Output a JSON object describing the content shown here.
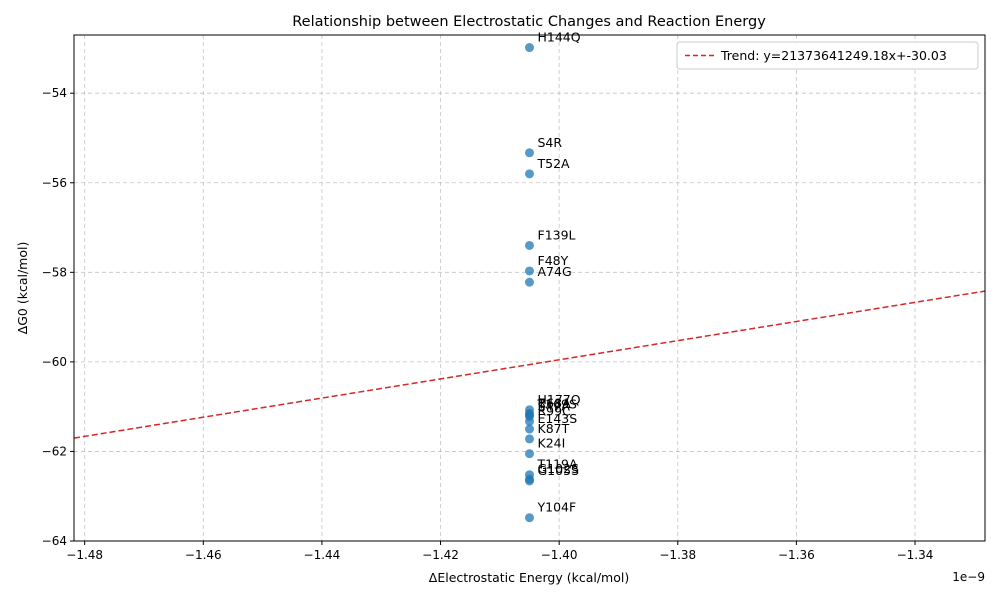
{
  "chart_data": {
    "type": "scatter",
    "title": "Relationship between Electrostatic Changes and Reaction Energy",
    "xlabel": "ΔElectrostatic Energy (kcal/mol)",
    "ylabel": "ΔG0 (kcal/mol)",
    "x_offset_label": "1e−9",
    "xlim": [
      -1.4818,
      -1.3282
    ],
    "ylim": [
      -64.0,
      -52.7
    ],
    "x_ticks": [
      -1.48,
      -1.46,
      -1.44,
      -1.42,
      -1.4,
      -1.38,
      -1.36,
      -1.34
    ],
    "x_tick_labels": [
      "−1.48",
      "−1.46",
      "−1.44",
      "−1.42",
      "−1.40",
      "−1.38",
      "−1.36",
      "−1.34"
    ],
    "y_ticks": [
      -64,
      -62,
      -60,
      -58,
      -56,
      -54
    ],
    "y_tick_labels": [
      "−64",
      "−62",
      "−60",
      "−58",
      "−56",
      "−54"
    ],
    "grid": true,
    "legend_position": "top-right",
    "point_color": "#1f77b4",
    "trend_color": "#d62728",
    "series": [
      {
        "name": "",
        "points": [
          {
            "label": "H144Q",
            "x": -1.405,
            "y": -52.98
          },
          {
            "label": "S4R",
            "x": -1.405,
            "y": -55.33
          },
          {
            "label": "T52A",
            "x": -1.405,
            "y": -55.8
          },
          {
            "label": "F139L",
            "x": -1.405,
            "y": -57.4
          },
          {
            "label": "F48Y",
            "x": -1.405,
            "y": -57.97
          },
          {
            "label": "A74G",
            "x": -1.405,
            "y": -58.22
          },
          {
            "label": "H177Q",
            "x": -1.405,
            "y": -61.07
          },
          {
            "label": "R68A",
            "x": -1.405,
            "y": -61.15
          },
          {
            "label": "T169S",
            "x": -1.405,
            "y": -61.18
          },
          {
            "label": "S47A",
            "x": -1.405,
            "y": -61.22
          },
          {
            "label": "R99C",
            "x": -1.405,
            "y": -61.33
          },
          {
            "label": "E143S",
            "x": -1.405,
            "y": -61.5
          },
          {
            "label": "K87T",
            "x": -1.405,
            "y": -61.72
          },
          {
            "label": "K24I",
            "x": -1.405,
            "y": -62.05
          },
          {
            "label": "T119A",
            "x": -1.405,
            "y": -62.52
          },
          {
            "label": "G102S",
            "x": -1.405,
            "y": -62.62
          },
          {
            "label": "G105S",
            "x": -1.405,
            "y": -62.66
          },
          {
            "label": "Y104F",
            "x": -1.405,
            "y": -63.48
          }
        ]
      },
      {
        "name": "Trend: y=21373641249.18x+-30.03",
        "type": "line",
        "slope": 21373641249.18,
        "intercept": -30.03
      }
    ]
  }
}
